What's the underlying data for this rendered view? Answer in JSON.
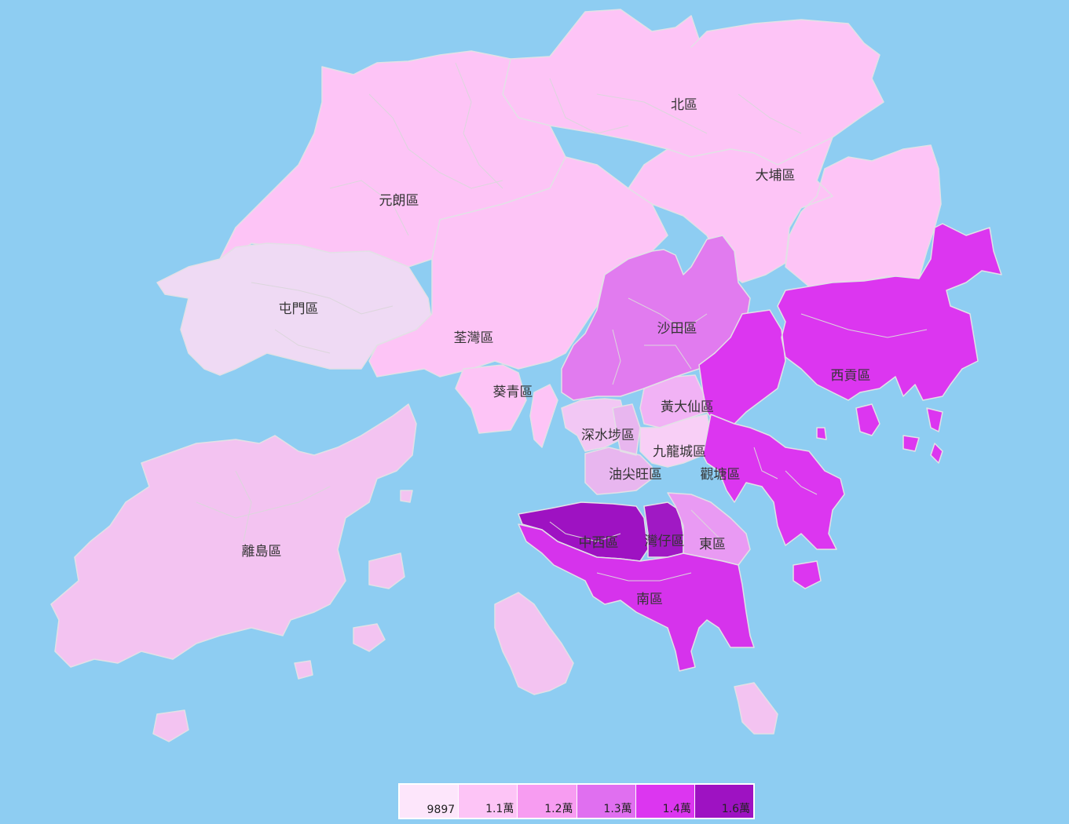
{
  "map": {
    "districts": [
      {
        "id": "north",
        "label": "北區",
        "color": "#fdc4f6"
      },
      {
        "id": "taipo",
        "label": "大埔區",
        "color": "#fdc4f6"
      },
      {
        "id": "yuenlong",
        "label": "元朗區",
        "color": "#fdc4f6"
      },
      {
        "id": "tuenmun",
        "label": "屯門區",
        "color": "#efdaf4"
      },
      {
        "id": "tsuenwan",
        "label": "荃灣區",
        "color": "#fdc4f6"
      },
      {
        "id": "kwaitsing",
        "label": "葵青區",
        "color": "#fdc4f6"
      },
      {
        "id": "shatin",
        "label": "沙田區",
        "color": "#e17bef"
      },
      {
        "id": "saikung",
        "label": "西貢區",
        "color": "#dc36f0"
      },
      {
        "id": "wongtaisin",
        "label": "黃大仙區",
        "color": "#f1b2f5"
      },
      {
        "id": "shamshuipo",
        "label": "深水埗區",
        "color": "#f2c7f4"
      },
      {
        "id": "kowlooncity",
        "label": "九龍城區",
        "color": "#f8cff6"
      },
      {
        "id": "yautsimmong",
        "label": "油尖旺區",
        "color": "#e8b6ef"
      },
      {
        "id": "kwuntong",
        "label": "觀塘區",
        "color": "#dc36f0"
      },
      {
        "id": "islands",
        "label": "離島區",
        "color": "#f3c3f1"
      },
      {
        "id": "centralwestern",
        "label": "中西區",
        "color": "#9e12c2"
      },
      {
        "id": "wanchai",
        "label": "灣仔區",
        "color": "#a019c4"
      },
      {
        "id": "eastern",
        "label": "東區",
        "color": "#e99af3"
      },
      {
        "id": "southern",
        "label": "南區",
        "color": "#d633ec"
      }
    ]
  },
  "legend": {
    "items": [
      {
        "label": "9897",
        "color": "#fde6fb"
      },
      {
        "label": "1.1萬",
        "color": "#fdc4f6"
      },
      {
        "label": "1.2萬",
        "color": "#f79cf1"
      },
      {
        "label": "1.3萬",
        "color": "#e06ff0"
      },
      {
        "label": "1.4萬",
        "color": "#dc36f0"
      },
      {
        "label": "1.6萬",
        "color": "#9e12c2"
      }
    ]
  }
}
